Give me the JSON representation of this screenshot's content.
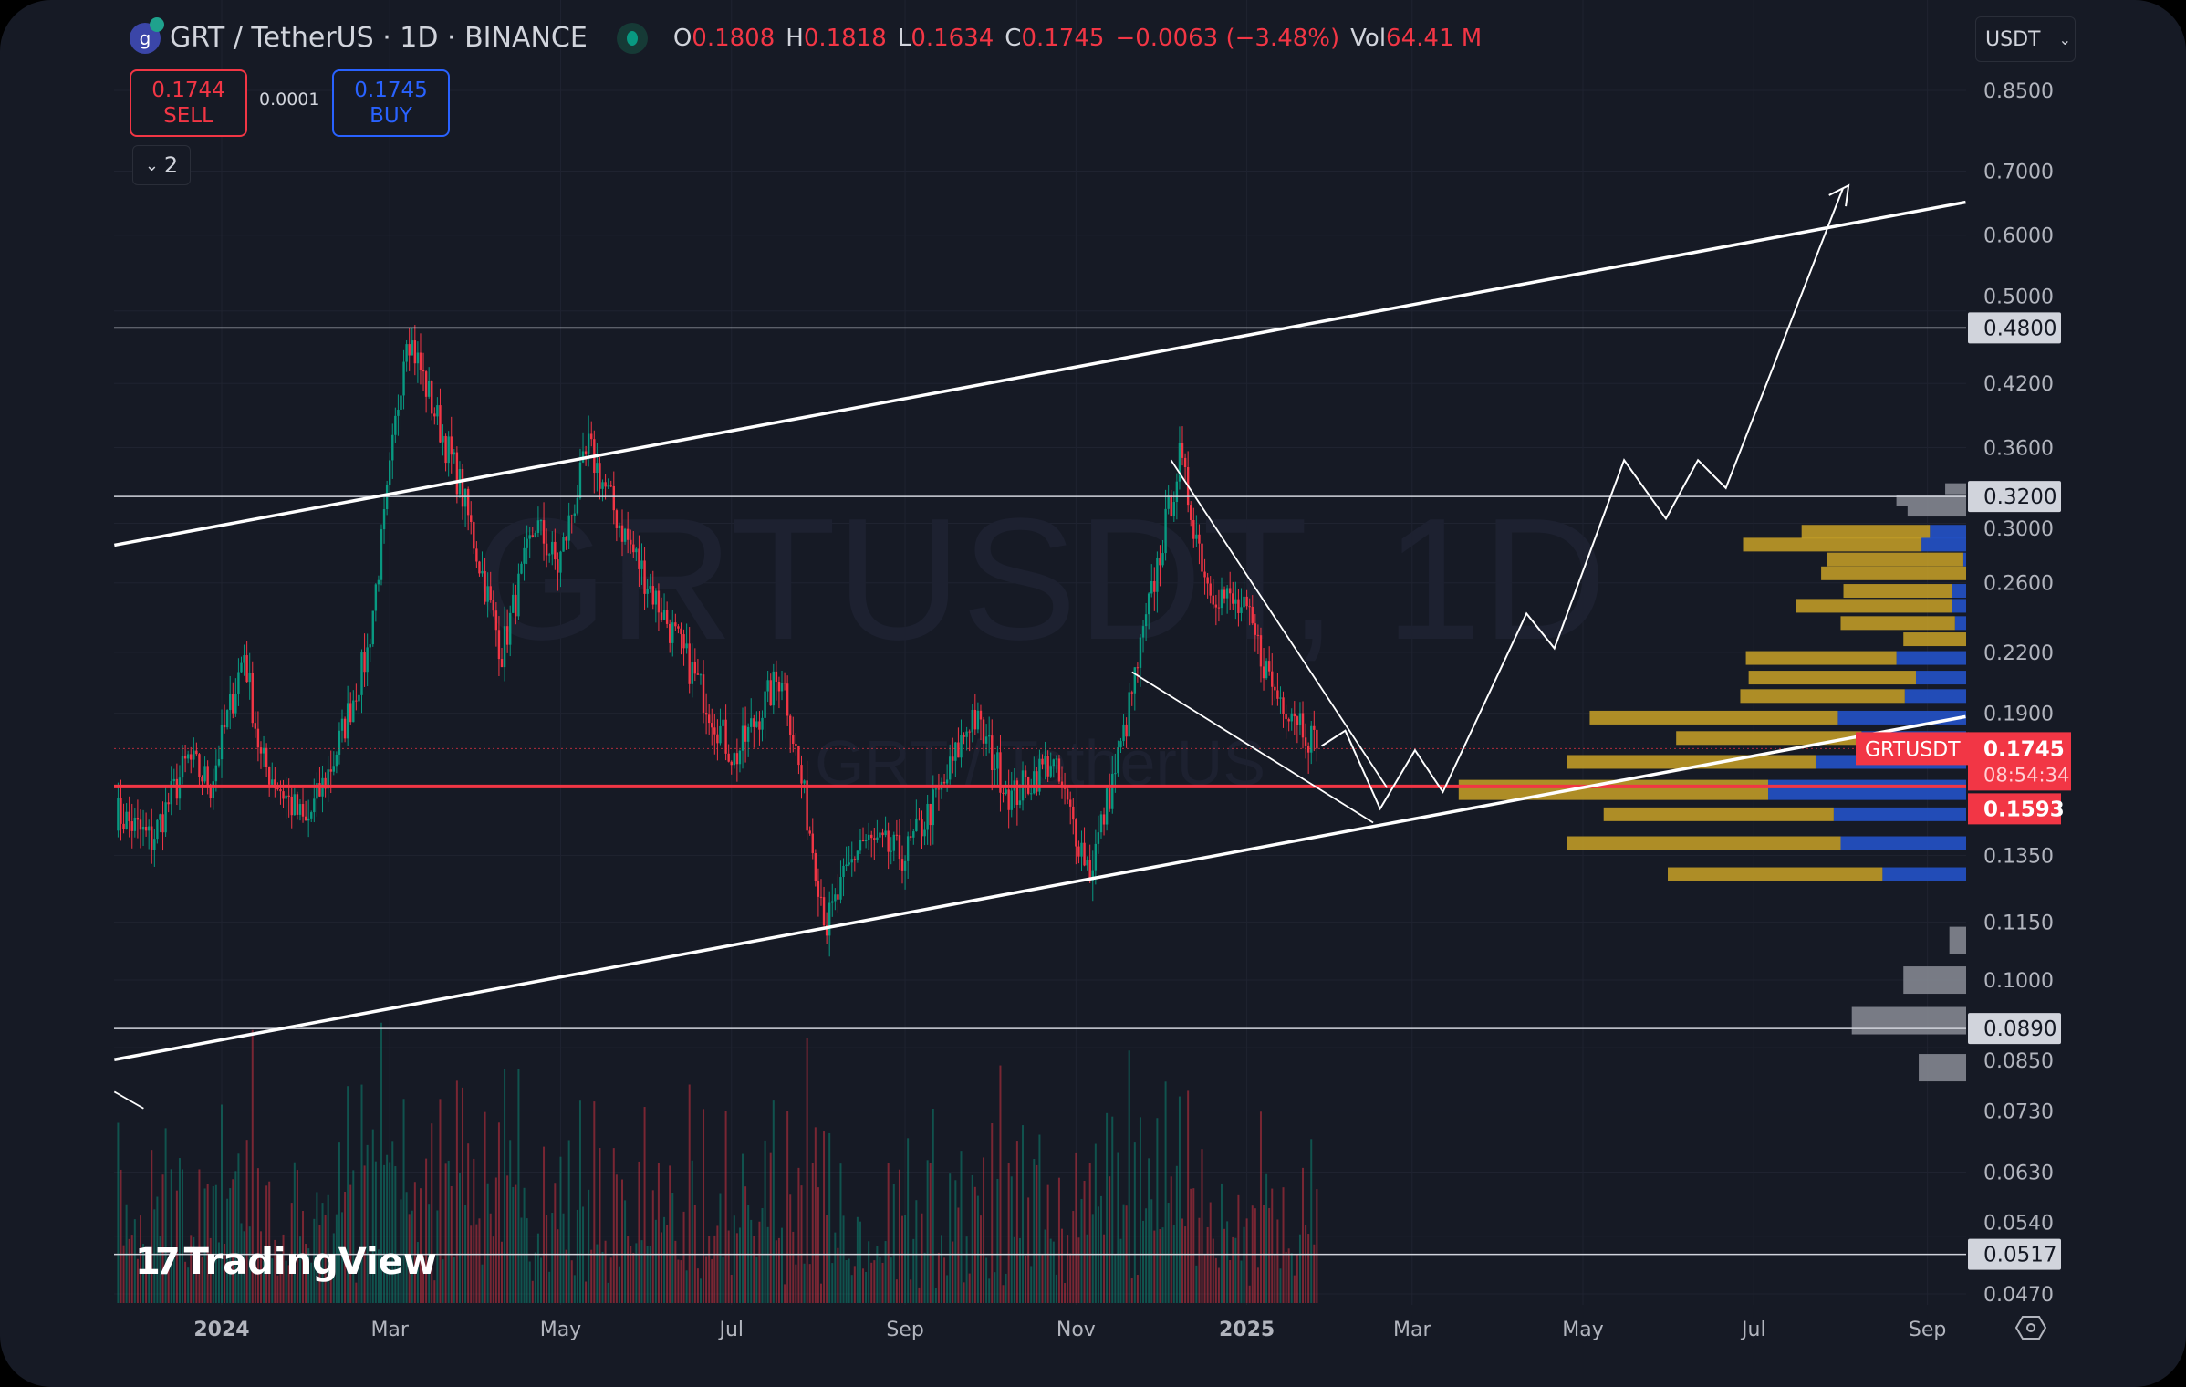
{
  "header": {
    "symbol_title": "GRT / TetherUS · 1D · BINANCE",
    "logo_text": "g",
    "ohlc": [
      {
        "k": "O",
        "v": "0.1808"
      },
      {
        "k": "H",
        "v": "0.1818"
      },
      {
        "k": "L",
        "v": "0.1634"
      },
      {
        "k": "C",
        "v": "0.1745"
      },
      {
        "k": "",
        "v": "−0.0063 (−3.48%)"
      },
      {
        "k": "Vol",
        "v": "64.41 M"
      }
    ]
  },
  "trade": {
    "sell_price": "0.1744",
    "sell_label": "SELL",
    "spread": "0.0001",
    "buy_price": "0.1745",
    "buy_label": "BUY"
  },
  "indicators_toggle": {
    "icon": "chevron-down-icon",
    "count": "2"
  },
  "currency": {
    "label": "USDT",
    "icon": "chevron-down-icon"
  },
  "branding": {
    "logo": "TradingView",
    "watermark": "GRTUSDT, 1D",
    "watermark_sub": "GRT / TetherUS"
  },
  "colors": {
    "up": "#089981",
    "down": "#f23645",
    "accent": "#2962ff",
    "profile_up": "#c9a227",
    "profile_down": "#2452c8",
    "bg": "#161a25"
  },
  "chart_data": {
    "type": "candlestick",
    "symbol": "GRTUSDT",
    "interval": "1D",
    "scale": "log",
    "ylim": [
      0.047,
      0.85
    ],
    "y_ticks": [
      "0.8500",
      "0.7000",
      "0.6000",
      "0.5000",
      "0.4200",
      "0.3600",
      "0.3000",
      "0.2600",
      "0.2200",
      "0.1900",
      "0.1350",
      "0.1150",
      "0.1000",
      "0.0850",
      "0.0730",
      "0.0630",
      "0.0540",
      "0.0470"
    ],
    "x_ticks": [
      {
        "label": "2024",
        "day": 0
      },
      {
        "label": "Mar",
        "day": 60
      },
      {
        "label": "May",
        "day": 121
      },
      {
        "label": "Jul",
        "day": 182
      },
      {
        "label": "Sep",
        "day": 244
      },
      {
        "label": "Nov",
        "day": 305
      },
      {
        "label": "2025",
        "day": 366
      },
      {
        "label": "Mar",
        "day": 425
      },
      {
        "label": "May",
        "day": 486
      },
      {
        "label": "Jul",
        "day": 547
      },
      {
        "label": "Sep",
        "day": 609
      }
    ],
    "price_path_days_since_2024_01_01": [
      [
        -38,
        0.15
      ],
      [
        -25,
        0.14
      ],
      [
        -12,
        0.17
      ],
      [
        -4,
        0.16
      ],
      [
        8,
        0.22
      ],
      [
        14,
        0.17
      ],
      [
        30,
        0.145
      ],
      [
        40,
        0.17
      ],
      [
        52,
        0.22
      ],
      [
        58,
        0.3
      ],
      [
        66,
        0.48
      ],
      [
        75,
        0.4
      ],
      [
        85,
        0.33
      ],
      [
        100,
        0.22
      ],
      [
        112,
        0.3
      ],
      [
        120,
        0.27
      ],
      [
        131,
        0.36
      ],
      [
        142,
        0.3
      ],
      [
        155,
        0.25
      ],
      [
        168,
        0.21
      ],
      [
        183,
        0.17
      ],
      [
        200,
        0.21
      ],
      [
        216,
        0.114
      ],
      [
        228,
        0.14
      ],
      [
        244,
        0.135
      ],
      [
        258,
        0.16
      ],
      [
        268,
        0.19
      ],
      [
        282,
        0.155
      ],
      [
        296,
        0.17
      ],
      [
        310,
        0.13
      ],
      [
        322,
        0.18
      ],
      [
        335,
        0.28
      ],
      [
        342,
        0.35
      ],
      [
        352,
        0.26
      ],
      [
        366,
        0.24
      ],
      [
        376,
        0.2
      ],
      [
        384,
        0.19
      ],
      [
        391,
        0.1745
      ]
    ],
    "last_price": {
      "value": "0.1745",
      "label": "GRTUSDT",
      "countdown": "08:54:34"
    },
    "levels": [
      {
        "price": 0.48,
        "label": "0.4800"
      },
      {
        "price": 0.32,
        "label": "0.3200"
      },
      {
        "price": 0.089,
        "label": "0.0890"
      },
      {
        "price": 0.0517,
        "label": "0.0517"
      }
    ],
    "support_level": {
      "price": 0.1593,
      "label": "0.1593"
    },
    "volume_profile": [
      {
        "price": 0.326,
        "up": 0,
        "down": 15,
        "gray": true
      },
      {
        "price": 0.317,
        "up": 0,
        "down": 50,
        "gray": true
      },
      {
        "price": 0.309,
        "up": 0,
        "down": 42,
        "gray": true
      },
      {
        "price": 0.294,
        "up": 92,
        "down": 26
      },
      {
        "price": 0.285,
        "up": 128,
        "down": 32
      },
      {
        "price": 0.275,
        "up": 98,
        "down": 2
      },
      {
        "price": 0.266,
        "up": 104,
        "down": 0
      },
      {
        "price": 0.255,
        "up": 78,
        "down": 10
      },
      {
        "price": 0.246,
        "up": 112,
        "down": 10
      },
      {
        "price": 0.236,
        "up": 82,
        "down": 8
      },
      {
        "price": 0.227,
        "up": 45,
        "down": 0
      },
      {
        "price": 0.217,
        "up": 108,
        "down": 50
      },
      {
        "price": 0.207,
        "up": 120,
        "down": 36
      },
      {
        "price": 0.198,
        "up": 118,
        "down": 44
      },
      {
        "price": 0.188,
        "up": 178,
        "down": 92
      },
      {
        "price": 0.179,
        "up": 133,
        "down": 75
      },
      {
        "price": 0.169,
        "up": 178,
        "down": 108
      },
      {
        "price": 0.158,
        "up": 222,
        "down": 142
      },
      {
        "price": 0.149,
        "up": 165,
        "down": 95
      },
      {
        "price": 0.139,
        "up": 196,
        "down": 90
      },
      {
        "price": 0.129,
        "up": 154,
        "down": 60
      },
      {
        "price": 0.11,
        "up": 0,
        "down": 12,
        "gray": true
      },
      {
        "price": 0.1,
        "up": 0,
        "down": 45,
        "gray": true
      },
      {
        "price": 0.0907,
        "up": 0,
        "down": 82,
        "gray": true
      },
      {
        "price": 0.081,
        "up": 0,
        "down": 34,
        "gray": true
      }
    ]
  }
}
